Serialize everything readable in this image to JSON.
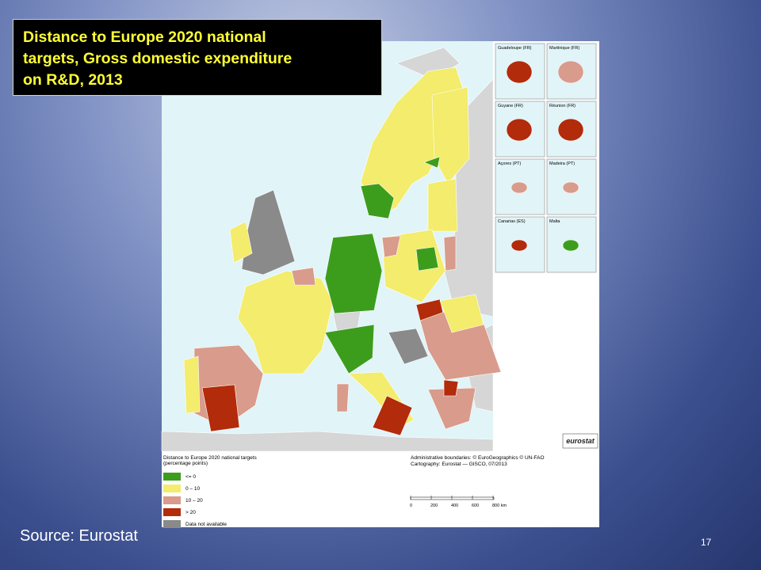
{
  "title": [
    "Distance to Europe 2020 national",
    "targets, Gross domestic expenditure",
    "on R&D, 2013"
  ],
  "source": "Source: Eurostat",
  "page_number": "17",
  "map": {
    "insets": [
      "Guadeloupe (FR)",
      "Martinique (FR)",
      "Guyane (FR)",
      "Réunion (FR)",
      "Açores (PT)",
      "Madeira (PT)",
      "Canarias (ES)",
      "Malta"
    ],
    "logo": "eurostat",
    "legend": {
      "title": [
        "Distance to Europe 2020 national targets",
        "(percentage points)"
      ],
      "items": [
        {
          "label": "<= 0",
          "color": "#3c9d1d"
        },
        {
          "label": "0 – 10",
          "color": "#f3ec6c"
        },
        {
          "label": "10 – 20",
          "color": "#d99b8b"
        },
        {
          "label": "> 20",
          "color": "#b22b0b"
        },
        {
          "label": "Data not available",
          "color": "#8a8a8a"
        }
      ]
    },
    "credits": [
      "Administrative boundaries: © EuroGeographics © UN-FAO",
      "Cartography: Eurostat — GISCO, 07/2013"
    ],
    "scale": [
      "0",
      "200",
      "400",
      "600",
      "800 km"
    ]
  }
}
